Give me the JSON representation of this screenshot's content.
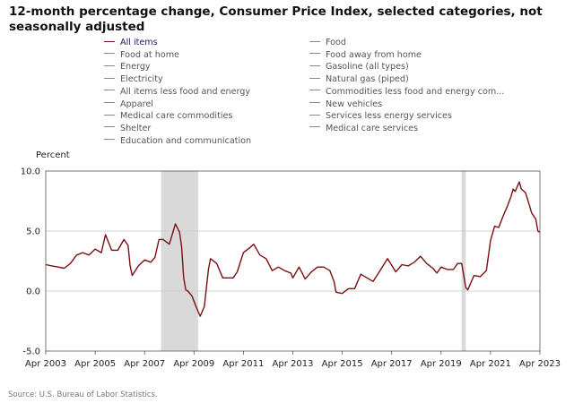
{
  "title": "12-month percentage change, Consumer Price Index, selected categories, not seasonally adjusted",
  "legend": {
    "left": [
      "All items",
      "Food at home",
      "Energy",
      "Electricity",
      "All items less food and energy",
      "Apparel",
      "Medical care commodities",
      "Shelter",
      "Education and communication"
    ],
    "right": [
      "Food",
      "Food away from home",
      "Gasoline (all types)",
      "Natural gas (piped)",
      "Commodities less food and energy com...",
      "New vehicles",
      "Services less energy services",
      "Medical care services"
    ],
    "active": "All items",
    "active_color": "#7a0f12",
    "inactive_color": "#888888"
  },
  "source": "Source: U.S. Bureau of Labor Statistics.",
  "chart_data": {
    "type": "line",
    "title": "",
    "ylabel": "Percent",
    "xlabel": "",
    "ylim": [
      -5.0,
      10.0
    ],
    "xlim": [
      "2003-04",
      "2023-04"
    ],
    "y_ticks": [
      "-5.0",
      "0.0",
      "5.0",
      "10.0"
    ],
    "x_ticks": [
      "Apr 2003",
      "Apr 2005",
      "Apr 2007",
      "Apr 2009",
      "Apr 2011",
      "Apr 2013",
      "Apr 2015",
      "Apr 2017",
      "Apr 2019",
      "Apr 2021",
      "Apr 2023"
    ],
    "recessions": [
      [
        "2007-12",
        "2009-06"
      ],
      [
        "2020-02",
        "2020-04"
      ]
    ],
    "recession_color": "#d9d9d9",
    "series": [
      {
        "name": "All items",
        "color": "#7a0f12",
        "points": [
          [
            "2003-04",
            2.2
          ],
          [
            "2003-07",
            2.1
          ],
          [
            "2003-10",
            2.0
          ],
          [
            "2004-01",
            1.9
          ],
          [
            "2004-04",
            2.3
          ],
          [
            "2004-07",
            3.0
          ],
          [
            "2004-10",
            3.2
          ],
          [
            "2005-01",
            3.0
          ],
          [
            "2005-04",
            3.5
          ],
          [
            "2005-07",
            3.2
          ],
          [
            "2005-09",
            4.7
          ],
          [
            "2005-12",
            3.4
          ],
          [
            "2006-03",
            3.4
          ],
          [
            "2006-06",
            4.3
          ],
          [
            "2006-08",
            3.8
          ],
          [
            "2006-09",
            2.1
          ],
          [
            "2006-10",
            1.3
          ],
          [
            "2007-01",
            2.1
          ],
          [
            "2007-04",
            2.6
          ],
          [
            "2007-07",
            2.4
          ],
          [
            "2007-09",
            2.8
          ],
          [
            "2007-11",
            4.3
          ],
          [
            "2008-01",
            4.3
          ],
          [
            "2008-04",
            3.9
          ],
          [
            "2008-07",
            5.6
          ],
          [
            "2008-09",
            4.9
          ],
          [
            "2008-10",
            3.7
          ],
          [
            "2008-11",
            1.1
          ],
          [
            "2008-12",
            0.1
          ],
          [
            "2009-01",
            0.0
          ],
          [
            "2009-03",
            -0.4
          ],
          [
            "2009-05",
            -1.3
          ],
          [
            "2009-07",
            -2.1
          ],
          [
            "2009-09",
            -1.3
          ],
          [
            "2009-11",
            1.8
          ],
          [
            "2009-12",
            2.7
          ],
          [
            "2010-03",
            2.3
          ],
          [
            "2010-06",
            1.1
          ],
          [
            "2010-09",
            1.1
          ],
          [
            "2010-11",
            1.1
          ],
          [
            "2011-01",
            1.6
          ],
          [
            "2011-04",
            3.2
          ],
          [
            "2011-07",
            3.6
          ],
          [
            "2011-09",
            3.9
          ],
          [
            "2011-12",
            3.0
          ],
          [
            "2012-03",
            2.7
          ],
          [
            "2012-06",
            1.7
          ],
          [
            "2012-09",
            2.0
          ],
          [
            "2012-12",
            1.7
          ],
          [
            "2013-03",
            1.5
          ],
          [
            "2013-04",
            1.1
          ],
          [
            "2013-07",
            2.0
          ],
          [
            "2013-10",
            1.0
          ],
          [
            "2014-01",
            1.6
          ],
          [
            "2014-04",
            2.0
          ],
          [
            "2014-07",
            2.0
          ],
          [
            "2014-10",
            1.7
          ],
          [
            "2014-12",
            0.8
          ],
          [
            "2015-01",
            -0.1
          ],
          [
            "2015-04",
            -0.2
          ],
          [
            "2015-07",
            0.2
          ],
          [
            "2015-10",
            0.2
          ],
          [
            "2016-01",
            1.4
          ],
          [
            "2016-04",
            1.1
          ],
          [
            "2016-07",
            0.8
          ],
          [
            "2016-10",
            1.6
          ],
          [
            "2017-02",
            2.7
          ],
          [
            "2017-06",
            1.6
          ],
          [
            "2017-09",
            2.2
          ],
          [
            "2017-12",
            2.1
          ],
          [
            "2018-03",
            2.4
          ],
          [
            "2018-06",
            2.9
          ],
          [
            "2018-09",
            2.3
          ],
          [
            "2018-12",
            1.9
          ],
          [
            "2019-02",
            1.5
          ],
          [
            "2019-04",
            2.0
          ],
          [
            "2019-07",
            1.8
          ],
          [
            "2019-10",
            1.8
          ],
          [
            "2019-12",
            2.3
          ],
          [
            "2020-02",
            2.3
          ],
          [
            "2020-04",
            0.3
          ],
          [
            "2020-05",
            0.1
          ],
          [
            "2020-08",
            1.3
          ],
          [
            "2020-11",
            1.2
          ],
          [
            "2021-02",
            1.7
          ],
          [
            "2021-04",
            4.2
          ],
          [
            "2021-06",
            5.4
          ],
          [
            "2021-08",
            5.3
          ],
          [
            "2021-10",
            6.2
          ],
          [
            "2021-12",
            7.0
          ],
          [
            "2022-02",
            7.9
          ],
          [
            "2022-03",
            8.5
          ],
          [
            "2022-04",
            8.3
          ],
          [
            "2022-06",
            9.1
          ],
          [
            "2022-07",
            8.5
          ],
          [
            "2022-09",
            8.2
          ],
          [
            "2022-11",
            7.1
          ],
          [
            "2022-12",
            6.5
          ],
          [
            "2023-02",
            6.0
          ],
          [
            "2023-03",
            5.0
          ],
          [
            "2023-04",
            4.9
          ]
        ]
      }
    ]
  }
}
